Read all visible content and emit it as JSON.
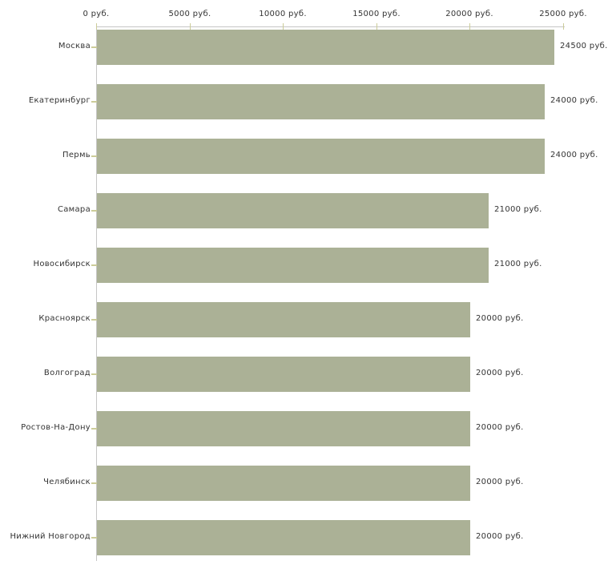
{
  "chart_data": {
    "type": "bar",
    "orientation": "horizontal",
    "categories": [
      "Москва",
      "Екатеринбург",
      "Пермь",
      "Самара",
      "Новосибирск",
      "Красноярск",
      "Волгоград",
      "Ростов-На-Дону",
      "Челябинск",
      "Нижний Новгород"
    ],
    "values": [
      24500,
      24000,
      24000,
      21000,
      21000,
      20000,
      20000,
      20000,
      20000,
      20000
    ],
    "value_labels": [
      "24500 руб.",
      "24000 руб.",
      "24000 руб.",
      "21000 руб.",
      "21000 руб.",
      "20000 руб.",
      "20000 руб.",
      "20000 руб.",
      "20000 руб.",
      "20000 руб."
    ],
    "x_axis": {
      "position": "top",
      "min": 0,
      "max": 25000,
      "tick_step": 5000,
      "ticks": [
        0,
        5000,
        10000,
        15000,
        20000,
        25000
      ],
      "tick_labels": [
        "0 руб.",
        "5000 руб.",
        "10000 руб.",
        "15000 руб.",
        "20000 руб.",
        "25000 руб."
      ],
      "unit": "руб."
    },
    "grid": "off",
    "legend": "none",
    "colors": {
      "bar": "#abb196",
      "axis_line": "#c6c6c6",
      "tick_mark": "#cccc99",
      "text": "#333333",
      "background": "#ffffff"
    }
  }
}
